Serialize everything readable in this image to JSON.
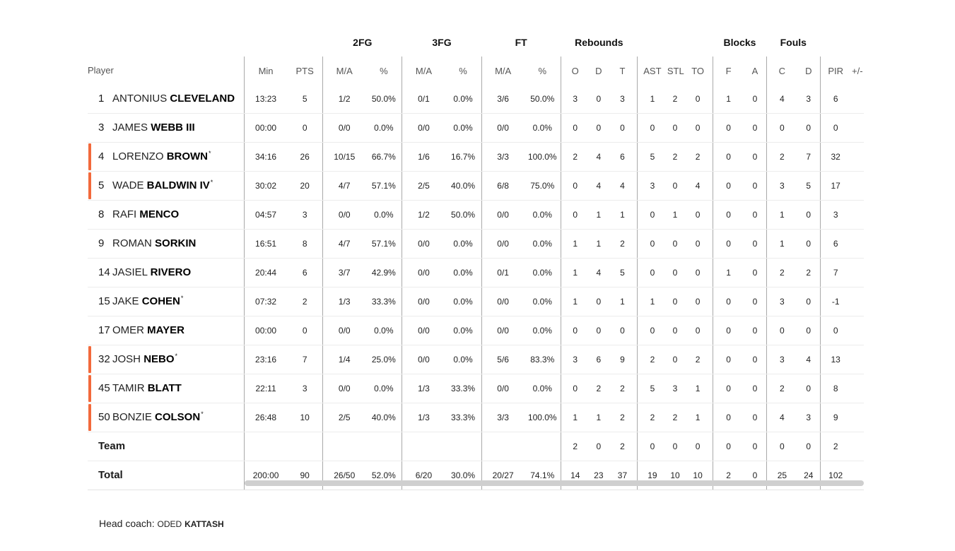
{
  "headers": {
    "player": "Player",
    "groups": [
      "2FG",
      "3FG",
      "FT",
      "Rebounds",
      "Blocks",
      "Fouls"
    ],
    "columns": [
      "Min",
      "PTS",
      "M/A",
      "%",
      "M/A",
      "%",
      "M/A",
      "%",
      "O",
      "D",
      "T",
      "AST",
      "STL",
      "TO",
      "F",
      "A",
      "C",
      "D",
      "PIR",
      "+/-"
    ]
  },
  "players": [
    {
      "num": "1",
      "first": "ANTONIUS",
      "last": "CLEVELAND",
      "star": "",
      "starter": false,
      "stats": [
        "13:23",
        "5",
        "1/2",
        "50.0%",
        "0/1",
        "0.0%",
        "3/6",
        "50.0%",
        "3",
        "0",
        "3",
        "1",
        "2",
        "0",
        "1",
        "0",
        "4",
        "3",
        "6",
        ""
      ]
    },
    {
      "num": "3",
      "first": "JAMES",
      "last": "WEBB III",
      "star": "",
      "starter": false,
      "stats": [
        "00:00",
        "0",
        "0/0",
        "0.0%",
        "0/0",
        "0.0%",
        "0/0",
        "0.0%",
        "0",
        "0",
        "0",
        "0",
        "0",
        "0",
        "0",
        "0",
        "0",
        "0",
        "0",
        ""
      ]
    },
    {
      "num": "4",
      "first": "LORENZO",
      "last": "BROWN",
      "star": "*",
      "starter": true,
      "stats": [
        "34:16",
        "26",
        "10/15",
        "66.7%",
        "1/6",
        "16.7%",
        "3/3",
        "100.0%",
        "2",
        "4",
        "6",
        "5",
        "2",
        "2",
        "0",
        "0",
        "2",
        "7",
        "32",
        ""
      ]
    },
    {
      "num": "5",
      "first": "WADE",
      "last": "BALDWIN IV",
      "star": "*",
      "starter": true,
      "stats": [
        "30:02",
        "20",
        "4/7",
        "57.1%",
        "2/5",
        "40.0%",
        "6/8",
        "75.0%",
        "0",
        "4",
        "4",
        "3",
        "0",
        "4",
        "0",
        "0",
        "3",
        "5",
        "17",
        ""
      ]
    },
    {
      "num": "8",
      "first": "RAFI",
      "last": "MENCO",
      "star": "",
      "starter": false,
      "stats": [
        "04:57",
        "3",
        "0/0",
        "0.0%",
        "1/2",
        "50.0%",
        "0/0",
        "0.0%",
        "0",
        "1",
        "1",
        "0",
        "1",
        "0",
        "0",
        "0",
        "1",
        "0",
        "3",
        ""
      ]
    },
    {
      "num": "9",
      "first": "ROMAN",
      "last": "SORKIN",
      "star": "",
      "starter": false,
      "stats": [
        "16:51",
        "8",
        "4/7",
        "57.1%",
        "0/0",
        "0.0%",
        "0/0",
        "0.0%",
        "1",
        "1",
        "2",
        "0",
        "0",
        "0",
        "0",
        "0",
        "1",
        "0",
        "6",
        ""
      ]
    },
    {
      "num": "14",
      "first": "JASIEL",
      "last": "RIVERO",
      "star": "",
      "starter": false,
      "stats": [
        "20:44",
        "6",
        "3/7",
        "42.9%",
        "0/0",
        "0.0%",
        "0/1",
        "0.0%",
        "1",
        "4",
        "5",
        "0",
        "0",
        "0",
        "1",
        "0",
        "2",
        "2",
        "7",
        ""
      ]
    },
    {
      "num": "15",
      "first": "JAKE",
      "last": "COHEN",
      "star": "*",
      "starter": false,
      "stats": [
        "07:32",
        "2",
        "1/3",
        "33.3%",
        "0/0",
        "0.0%",
        "0/0",
        "0.0%",
        "1",
        "0",
        "1",
        "1",
        "0",
        "0",
        "0",
        "0",
        "3",
        "0",
        "-1",
        ""
      ]
    },
    {
      "num": "17",
      "first": "OMER",
      "last": "MAYER",
      "star": "",
      "starter": false,
      "stats": [
        "00:00",
        "0",
        "0/0",
        "0.0%",
        "0/0",
        "0.0%",
        "0/0",
        "0.0%",
        "0",
        "0",
        "0",
        "0",
        "0",
        "0",
        "0",
        "0",
        "0",
        "0",
        "0",
        ""
      ]
    },
    {
      "num": "32",
      "first": "JOSH",
      "last": "NEBO",
      "star": "*",
      "starter": true,
      "stats": [
        "23:16",
        "7",
        "1/4",
        "25.0%",
        "0/0",
        "0.0%",
        "5/6",
        "83.3%",
        "3",
        "6",
        "9",
        "2",
        "0",
        "2",
        "0",
        "0",
        "3",
        "4",
        "13",
        ""
      ]
    },
    {
      "num": "45",
      "first": "TAMIR",
      "last": "BLATT",
      "star": "",
      "starter": true,
      "stats": [
        "22:11",
        "3",
        "0/0",
        "0.0%",
        "1/3",
        "33.3%",
        "0/0",
        "0.0%",
        "0",
        "2",
        "2",
        "5",
        "3",
        "1",
        "0",
        "0",
        "2",
        "0",
        "8",
        ""
      ]
    },
    {
      "num": "50",
      "first": "BONZIE",
      "last": "COLSON",
      "star": "*",
      "starter": true,
      "stats": [
        "26:48",
        "10",
        "2/5",
        "40.0%",
        "1/3",
        "33.3%",
        "3/3",
        "100.0%",
        "1",
        "1",
        "2",
        "2",
        "2",
        "1",
        "0",
        "0",
        "4",
        "3",
        "9",
        ""
      ]
    }
  ],
  "team": {
    "label": "Team",
    "stats": [
      "",
      "",
      "",
      "",
      "",
      "",
      "",
      "",
      "2",
      "0",
      "2",
      "0",
      "0",
      "0",
      "0",
      "0",
      "0",
      "0",
      "2",
      ""
    ]
  },
  "total": {
    "label": "Total",
    "stats": [
      "200:00",
      "90",
      "26/50",
      "52.0%",
      "6/20",
      "30.0%",
      "20/27",
      "74.1%",
      "14",
      "23",
      "37",
      "19",
      "10",
      "10",
      "2",
      "0",
      "25",
      "24",
      "102",
      ""
    ]
  },
  "coach": {
    "label": "Head coach:",
    "first": "ODED",
    "last": "KATTASH"
  },
  "colors": {
    "starter_bar": "#f26a3c"
  }
}
